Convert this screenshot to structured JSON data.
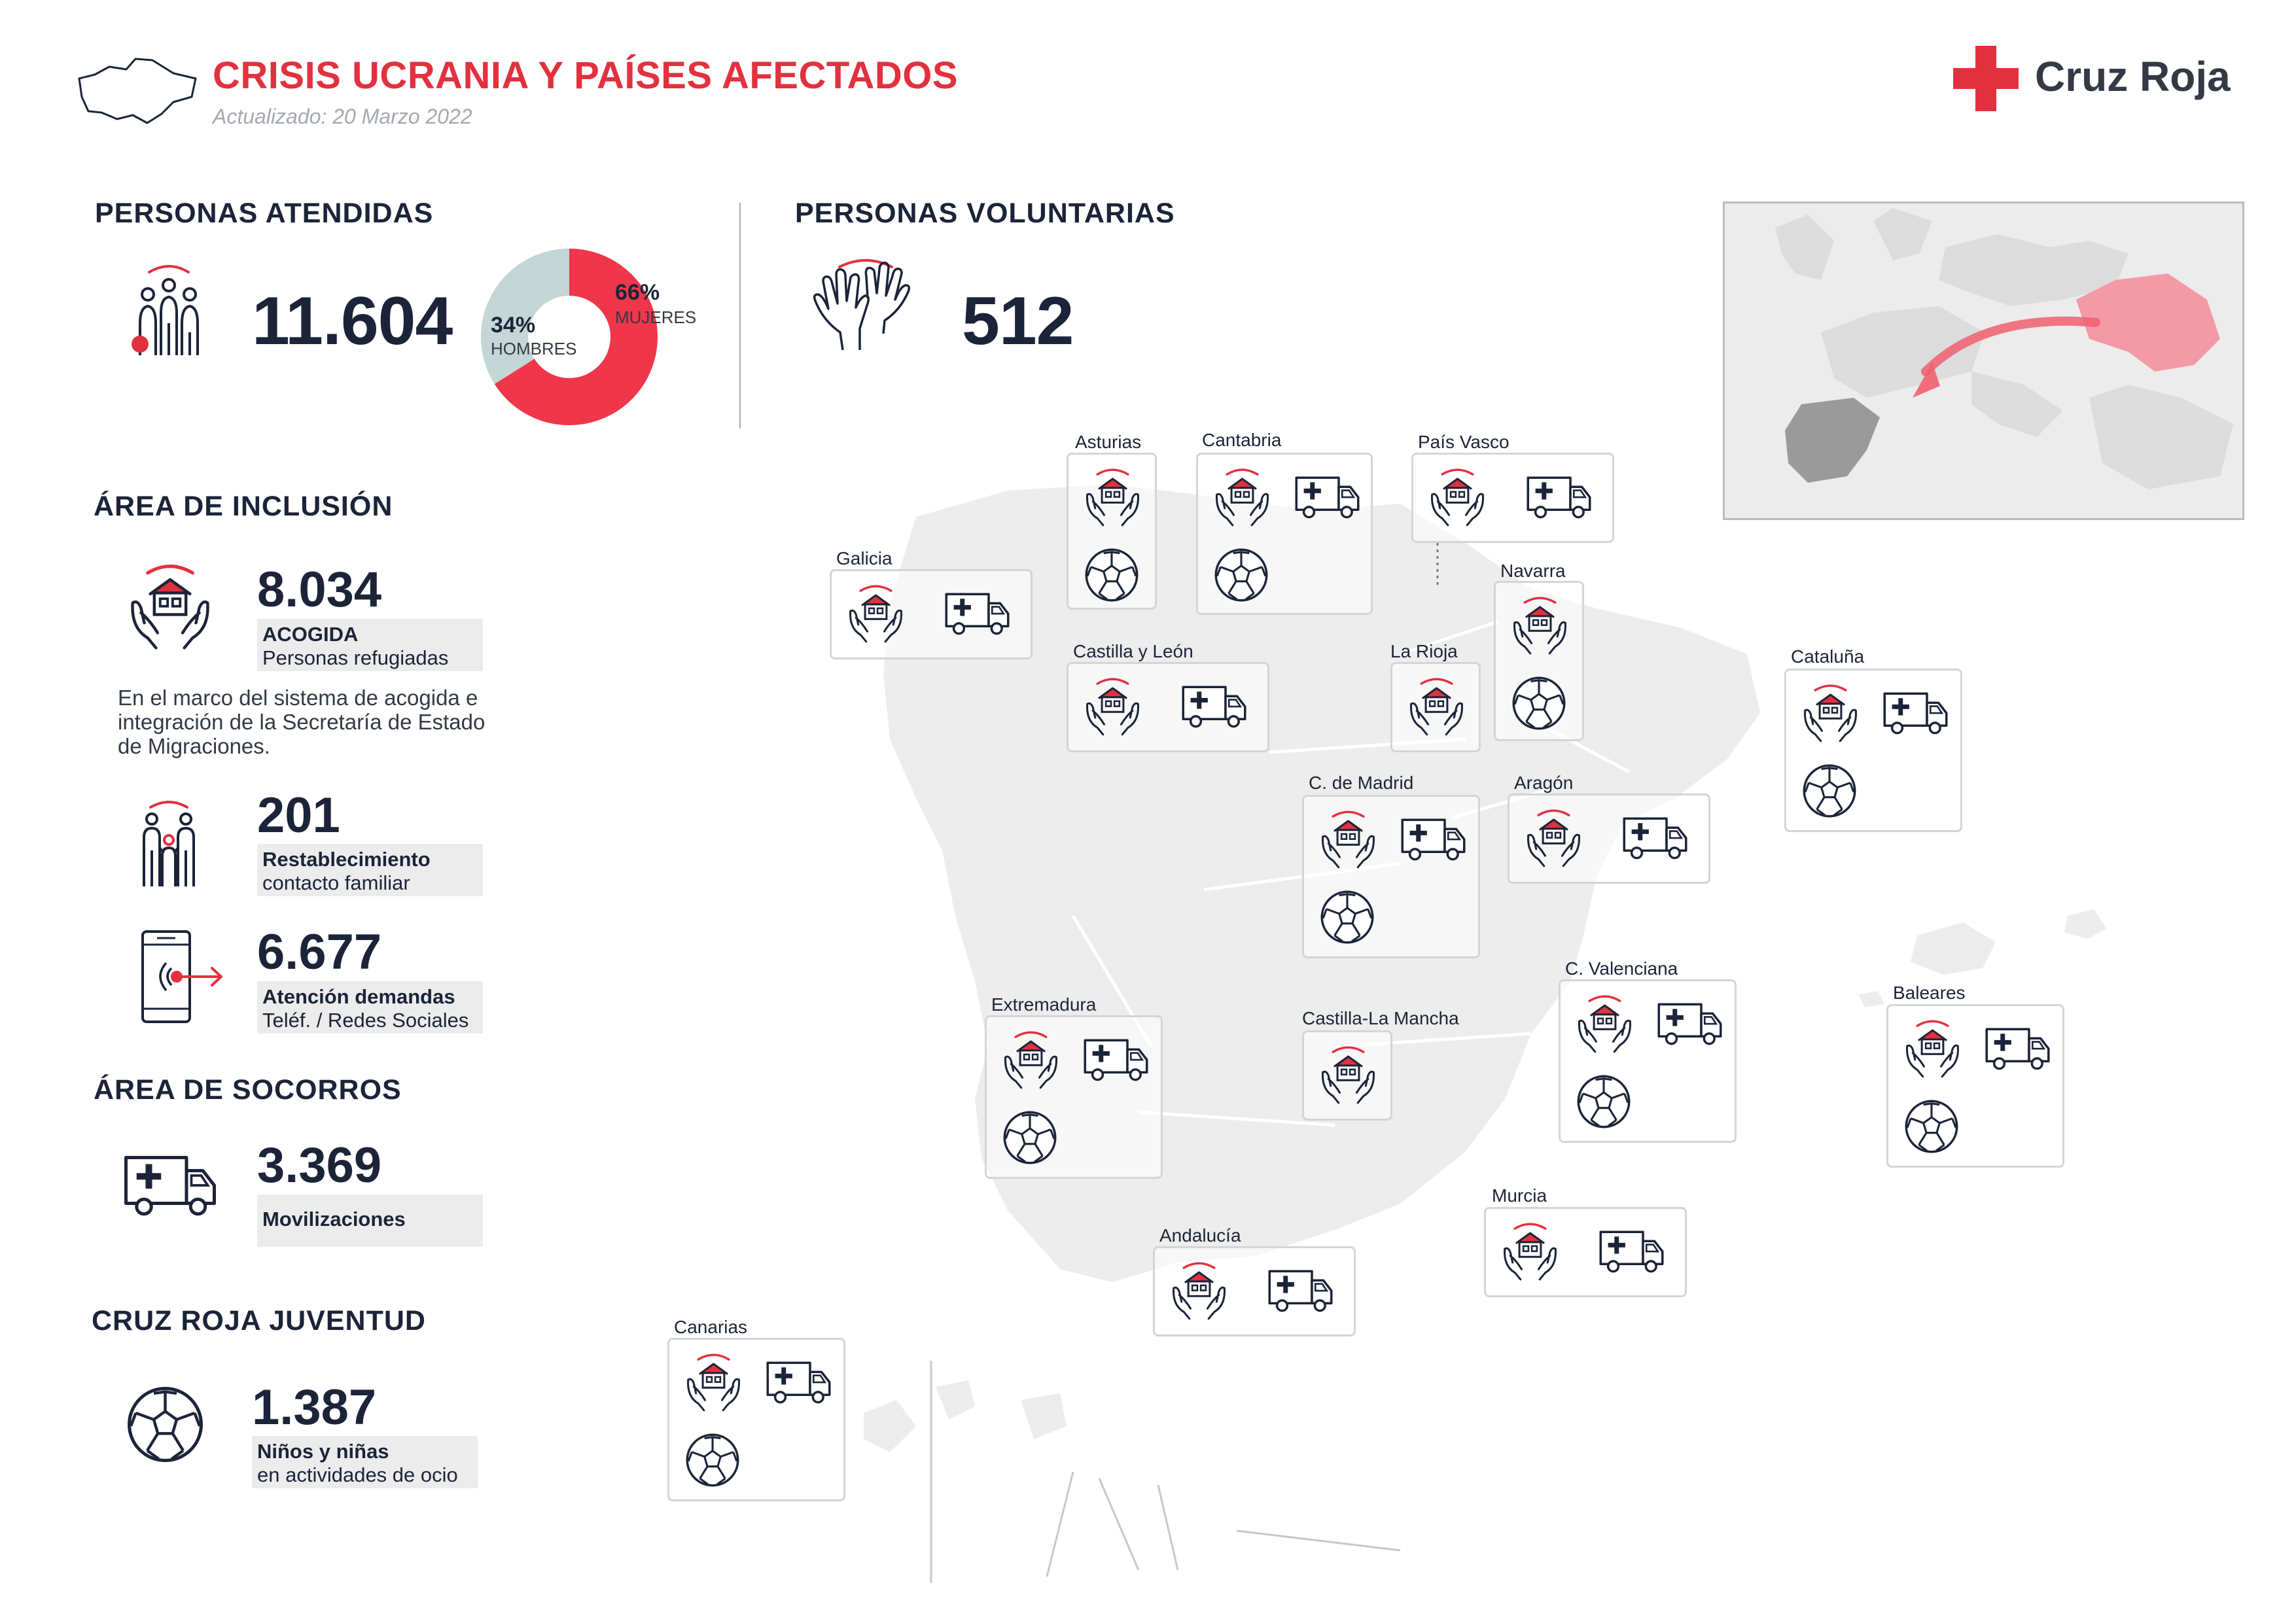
{
  "header": {
    "title": "CRISIS UCRANIA Y PAÍSES AFECTADOS",
    "updated": "Actualizado: 20 Marzo 2022",
    "brand": "Cruz Roja",
    "brand_color": "#e2313e"
  },
  "personas_atendidas": {
    "title": "PERSONAS ATENDIDAS",
    "value": "11.604",
    "icon": "people-group-icon",
    "donut": {
      "women_pct": "66%",
      "women_label": "MUJERES",
      "women_value": 66,
      "men_pct": "34%",
      "men_label": "HOMBRES",
      "men_value": 34,
      "women_color": "#f0364a",
      "men_color": "#c4d6d6"
    }
  },
  "personas_voluntarias": {
    "title": "PERSONAS VOLUNTARIAS",
    "value": "512",
    "icon": "raised-hands-icon"
  },
  "inclusion": {
    "title": "ÁREA DE INCLUSIÓN",
    "acogida": {
      "value": "8.034",
      "label_bold": "ACOGIDA",
      "label": "Personas refugiadas",
      "icon": "house-in-hands-icon",
      "description": "En el marco del sistema de acogida e integración de la Secretaría de Estado de Migraciones."
    },
    "restablecimiento": {
      "value": "201",
      "label_bold": "Restablecimiento",
      "label": "contacto familiar",
      "icon": "family-icon"
    },
    "atencion": {
      "value": "6.677",
      "label_bold": "Atención demandas",
      "label": "Teléf. / Redes Sociales",
      "icon": "phone-icon"
    }
  },
  "socorros": {
    "title": "ÁREA DE SOCORROS",
    "value": "3.369",
    "label_bold": "Movilizaciones",
    "icon": "ambulance-icon"
  },
  "juventud": {
    "title": "CRUZ ROJA JUVENTUD",
    "value": "1.387",
    "label_bold": "Niños y niñas",
    "label": "en actividades de ocio",
    "icon": "football-icon"
  },
  "regions": [
    {
      "name": "Asturias",
      "icons": [
        "house-in-hands-icon",
        "football-icon"
      ]
    },
    {
      "name": "Cantabria",
      "icons": [
        "house-in-hands-icon",
        "ambulance-icon",
        "football-icon"
      ]
    },
    {
      "name": "País Vasco",
      "icons": [
        "house-in-hands-icon",
        "ambulance-icon"
      ]
    },
    {
      "name": "Galicia",
      "icons": [
        "house-in-hands-icon",
        "ambulance-icon"
      ]
    },
    {
      "name": "Navarra",
      "icons": [
        "house-in-hands-icon",
        "football-icon"
      ]
    },
    {
      "name": "Castilla y León",
      "icons": [
        "house-in-hands-icon",
        "ambulance-icon"
      ]
    },
    {
      "name": "La Rioja",
      "icons": [
        "house-in-hands-icon"
      ]
    },
    {
      "name": "Cataluña",
      "icons": [
        "house-in-hands-icon",
        "ambulance-icon",
        "football-icon"
      ]
    },
    {
      "name": "C. de Madrid",
      "icons": [
        "house-in-hands-icon",
        "ambulance-icon",
        "football-icon"
      ]
    },
    {
      "name": "Aragón",
      "icons": [
        "house-in-hands-icon",
        "ambulance-icon"
      ]
    },
    {
      "name": "C. Valenciana",
      "icons": [
        "house-in-hands-icon",
        "ambulance-icon",
        "football-icon"
      ]
    },
    {
      "name": "Baleares",
      "icons": [
        "house-in-hands-icon",
        "ambulance-icon",
        "football-icon"
      ]
    },
    {
      "name": "Extremadura",
      "icons": [
        "house-in-hands-icon",
        "ambulance-icon",
        "football-icon"
      ]
    },
    {
      "name": "Castilla-La Mancha",
      "icons": [
        "house-in-hands-icon"
      ]
    },
    {
      "name": "Murcia",
      "icons": [
        "house-in-hands-icon",
        "ambulance-icon"
      ]
    },
    {
      "name": "Andalucía",
      "icons": [
        "house-in-hands-icon",
        "ambulance-icon"
      ]
    },
    {
      "name": "Canarias",
      "icons": [
        "house-in-hands-icon",
        "ambulance-icon",
        "football-icon"
      ]
    }
  ],
  "colors": {
    "navy": "#1b2438",
    "red": "#e2313e",
    "map_grey": "#ededed",
    "europe_pink": "#f39aa6"
  }
}
